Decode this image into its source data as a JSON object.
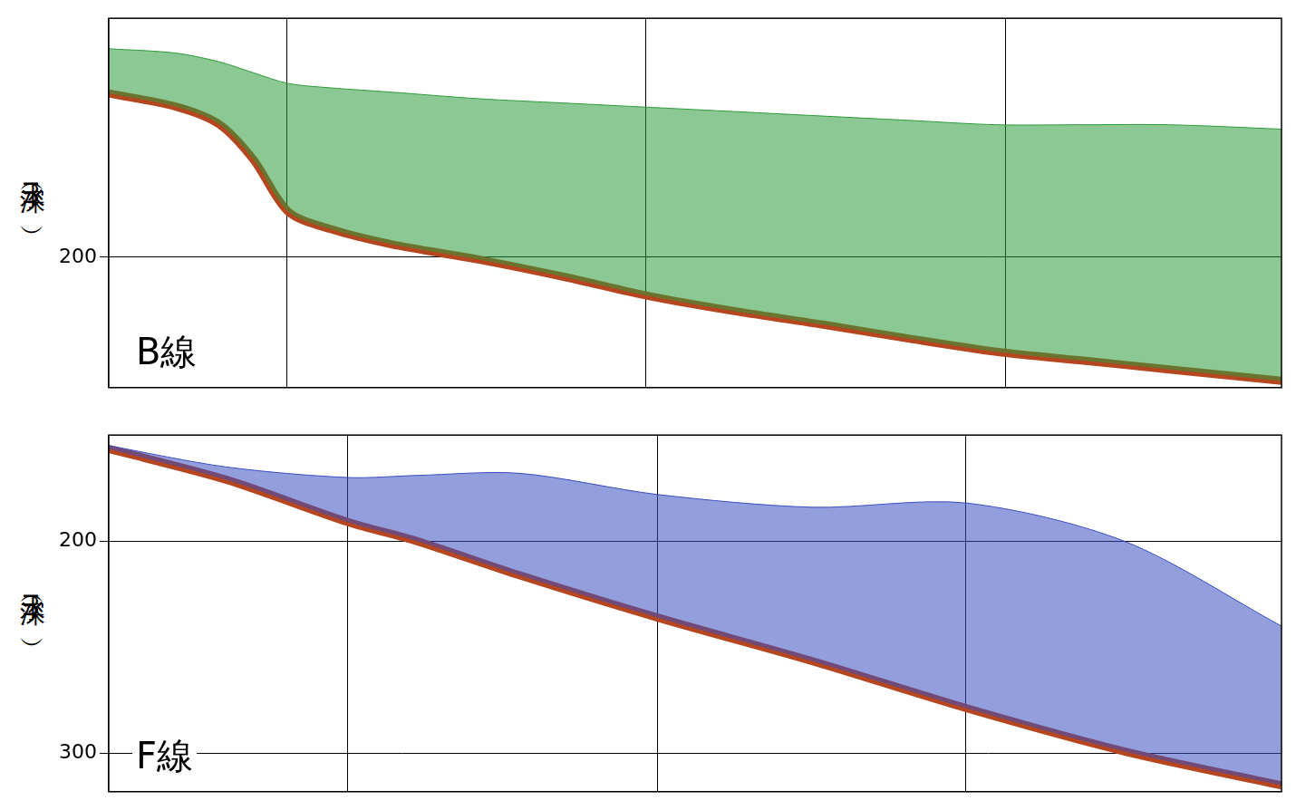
{
  "chart_data": [
    {
      "type": "line",
      "annotation": "B線",
      "ylabel": "水深（m）",
      "x": [
        0,
        5.7,
        9.4,
        12.3,
        15.3,
        18.9,
        24.1,
        31.5,
        38.8,
        46.2,
        53.6,
        60.9,
        68.3,
        75.7,
        83.1,
        90.4,
        100
      ],
      "series": [
        {
          "color": "#2e9a3a",
          "marker": "none",
          "line_style": "solid",
          "values": [
            104,
            106,
            110,
            115,
            120,
            122,
            124,
            127,
            129,
            131,
            133,
            135,
            137,
            139,
            139,
            139,
            141
          ]
        },
        {
          "color": "#b5461f",
          "marker": "none",
          "line_style": "solid",
          "values": [
            124.6,
            130.6,
            138.7,
            154.8,
            179,
            187,
            194,
            201,
            209,
            218,
            225,
            231,
            237.5,
            243.5,
            247.6,
            251.6,
            256.9
          ]
        }
      ],
      "xlim": [
        0,
        100
      ],
      "xticks": [
        15.2,
        45.8,
        76.5
      ],
      "ylim": [
        260,
        90
      ],
      "yticks": [
        200
      ],
      "grid": true,
      "tick_labels": "y"
    },
    {
      "type": "line",
      "annotation": "F線",
      "ylabel": "水深（m）",
      "x": [
        0,
        10,
        20.4,
        26.3,
        35,
        46.8,
        60,
        73.1,
        86.6,
        100
      ],
      "series": [
        {
          "color": "#3a4fc0",
          "marker": "none",
          "line_style": "solid",
          "values": [
            155,
            165,
            170,
            169,
            168,
            178,
            184,
            182,
            200,
            240
          ]
        },
        {
          "color": "#b5461f",
          "marker": "none",
          "line_style": "solid",
          "values": [
            156.5,
            171,
            191,
            200,
            216,
            236,
            256.5,
            278.6,
            299,
            315
          ]
        }
      ],
      "xlim": [
        0,
        100
      ],
      "xticks": [
        20.4,
        46.8,
        73.1
      ],
      "ylim": [
        318,
        150
      ],
      "yticks": [
        200,
        300
      ],
      "grid": true,
      "tick_labels": "y"
    }
  ]
}
